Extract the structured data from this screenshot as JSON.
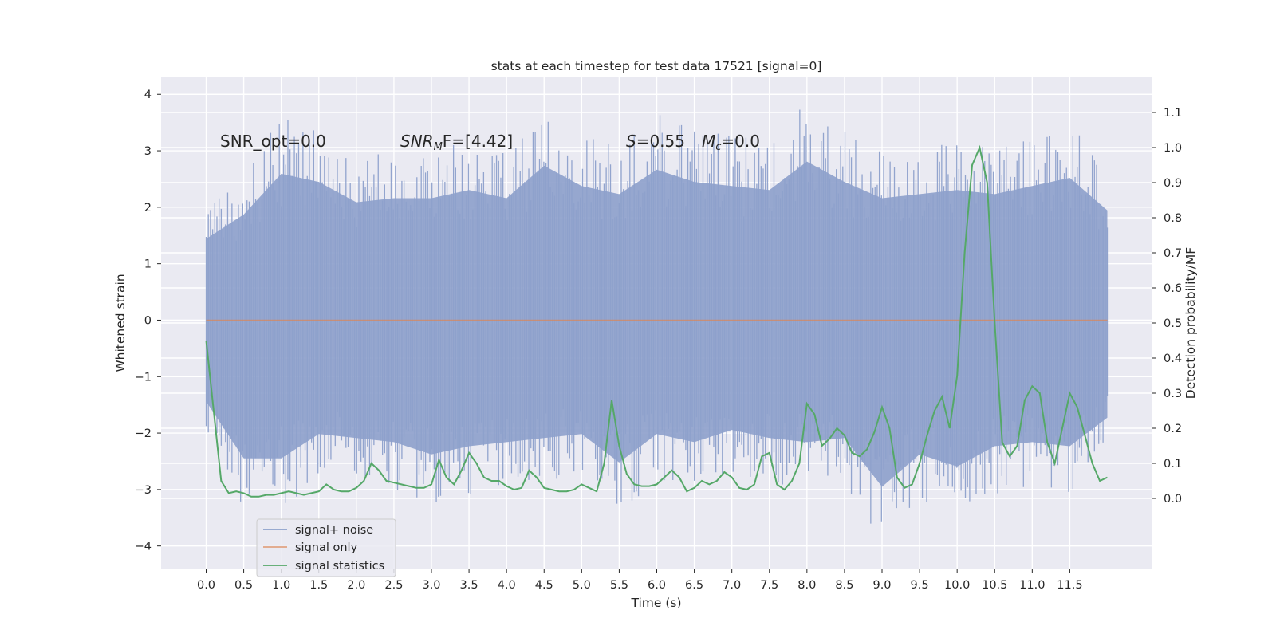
{
  "chart_data": {
    "type": "line",
    "title": "stats at each timestep for test data 17521 [signal=0]",
    "xlabel": "Time (s)",
    "ylabel": "Whitened strain",
    "y2label": "Detection probability/MF",
    "xlim": [
      -0.6,
      12.6
    ],
    "ylim": [
      -4.4,
      4.3
    ],
    "y2lim": [
      -0.2,
      1.2
    ],
    "x_ticks": [
      "0.0",
      "0.5",
      "1.0",
      "1.5",
      "2.0",
      "2.5",
      "3.0",
      "3.5",
      "4.0",
      "4.5",
      "5.0",
      "5.5",
      "6.0",
      "6.5",
      "7.0",
      "7.5",
      "8.0",
      "8.5",
      "9.0",
      "9.5",
      "10.0",
      "10.5",
      "11.0",
      "11.5"
    ],
    "y_ticks": [
      "4",
      "3",
      "2",
      "1",
      "0",
      "−1",
      "−2",
      "−3",
      "−4"
    ],
    "y2_ticks": [
      "1.1",
      "1.0",
      "0.9",
      "0.8",
      "0.7",
      "0.6",
      "0.5",
      "0.4",
      "0.3",
      "0.2",
      "0.1",
      "0.0"
    ],
    "grid": true,
    "legend_position": "lower-left",
    "annotations": {
      "snr_opt": "SNR_opt=0.0",
      "snr_mf_italic": "SNR",
      "snr_mf_sub": "M",
      "snr_mf_rest": "F=[4.42]",
      "s_italic": "S",
      "s_rest": "=0.55",
      "mc_italic": "M",
      "mc_sub": "c",
      "mc_rest": "=0.0"
    },
    "noise_envelope": {
      "x": [
        0.0,
        0.5,
        1.0,
        1.5,
        2.0,
        2.5,
        3.0,
        3.5,
        4.0,
        4.5,
        5.0,
        5.5,
        6.0,
        6.5,
        7.0,
        7.5,
        8.0,
        8.5,
        9.0,
        9.5,
        10.0,
        10.5,
        11.0,
        11.5,
        12.0
      ],
      "upper": [
        2.0,
        2.6,
        3.6,
        3.4,
        2.9,
        3.0,
        3.0,
        3.2,
        3.0,
        3.8,
        3.3,
        3.1,
        3.7,
        3.4,
        3.3,
        3.2,
        3.9,
        3.4,
        3.0,
        3.1,
        3.2,
        3.1,
        3.3,
        3.5,
        2.7
      ],
      "lower": [
        -2.0,
        -3.4,
        -3.4,
        -2.8,
        -2.9,
        -3.0,
        -3.3,
        -3.1,
        -3.0,
        -2.9,
        -2.8,
        -3.5,
        -2.8,
        -3.0,
        -2.7,
        -2.9,
        -3.0,
        -2.9,
        -4.1,
        -3.3,
        -3.6,
        -3.1,
        -3.0,
        -3.1,
        -2.4
      ]
    },
    "series": [
      {
        "name": "signal+ noise",
        "color": "#8da0cb"
      },
      {
        "name": "signal only",
        "color": "#dd8452",
        "x": [
          0.0,
          12.0
        ],
        "y": [
          0.0,
          0.0
        ]
      },
      {
        "name": "signal statistics",
        "color": "#55a868",
        "axis": "right",
        "x": [
          0.0,
          0.1,
          0.2,
          0.3,
          0.4,
          0.5,
          0.6,
          0.7,
          0.8,
          0.9,
          1.0,
          1.1,
          1.2,
          1.3,
          1.4,
          1.5,
          1.6,
          1.7,
          1.8,
          1.9,
          2.0,
          2.1,
          2.2,
          2.3,
          2.4,
          2.5,
          2.6,
          2.7,
          2.8,
          2.9,
          3.0,
          3.1,
          3.2,
          3.3,
          3.4,
          3.5,
          3.6,
          3.7,
          3.8,
          3.9,
          4.0,
          4.1,
          4.2,
          4.3,
          4.4,
          4.5,
          4.6,
          4.7,
          4.8,
          4.9,
          5.0,
          5.1,
          5.2,
          5.3,
          5.4,
          5.5,
          5.6,
          5.7,
          5.8,
          5.9,
          6.0,
          6.1,
          6.2,
          6.3,
          6.4,
          6.5,
          6.6,
          6.7,
          6.8,
          6.9,
          7.0,
          7.1,
          7.2,
          7.3,
          7.4,
          7.5,
          7.6,
          7.7,
          7.8,
          7.9,
          8.0,
          8.1,
          8.2,
          8.3,
          8.4,
          8.5,
          8.6,
          8.7,
          8.8,
          8.9,
          9.0,
          9.1,
          9.2,
          9.3,
          9.4,
          9.5,
          9.6,
          9.7,
          9.8,
          9.9,
          10.0,
          10.1,
          10.2,
          10.3,
          10.4,
          10.5,
          10.6,
          10.7,
          10.8,
          10.9,
          11.0,
          11.1,
          11.2,
          11.3,
          11.4,
          11.5,
          11.6,
          11.7,
          11.8,
          11.9,
          12.0
        ],
        "y": [
          0.45,
          0.25,
          0.05,
          0.015,
          0.02,
          0.015,
          0.005,
          0.005,
          0.01,
          0.01,
          0.015,
          0.02,
          0.015,
          0.01,
          0.015,
          0.02,
          0.04,
          0.025,
          0.02,
          0.02,
          0.03,
          0.05,
          0.1,
          0.08,
          0.05,
          0.045,
          0.04,
          0.035,
          0.03,
          0.03,
          0.04,
          0.11,
          0.06,
          0.04,
          0.08,
          0.13,
          0.1,
          0.06,
          0.05,
          0.05,
          0.035,
          0.025,
          0.03,
          0.08,
          0.06,
          0.03,
          0.025,
          0.02,
          0.02,
          0.025,
          0.04,
          0.03,
          0.02,
          0.1,
          0.28,
          0.15,
          0.07,
          0.04,
          0.035,
          0.035,
          0.04,
          0.06,
          0.08,
          0.06,
          0.02,
          0.03,
          0.05,
          0.04,
          0.05,
          0.075,
          0.06,
          0.03,
          0.025,
          0.04,
          0.12,
          0.13,
          0.04,
          0.025,
          0.05,
          0.1,
          0.27,
          0.24,
          0.15,
          0.17,
          0.2,
          0.18,
          0.13,
          0.12,
          0.14,
          0.19,
          0.26,
          0.2,
          0.06,
          0.03,
          0.04,
          0.1,
          0.18,
          0.25,
          0.29,
          0.2,
          0.35,
          0.7,
          0.95,
          1.0,
          0.9,
          0.5,
          0.16,
          0.12,
          0.15,
          0.28,
          0.32,
          0.3,
          0.16,
          0.1,
          0.2,
          0.3,
          0.26,
          0.18,
          0.1,
          0.05,
          0.06
        ]
      }
    ]
  }
}
